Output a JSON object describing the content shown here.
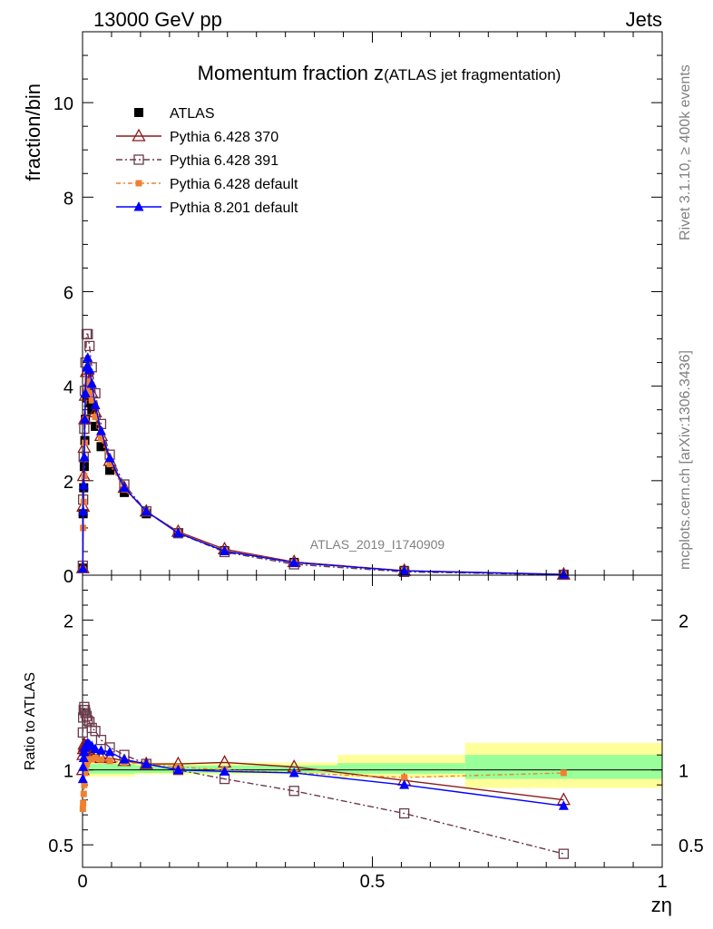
{
  "header": {
    "left_label": "13000 GeV pp",
    "right_label": "Jets"
  },
  "side_text": {
    "rivet": "Rivet 3.1.10, ≥ 400k events",
    "mcplots": "mcplots.cern.ch [arXiv:1306.3436]"
  },
  "chart_data": [
    {
      "type": "line",
      "title": "Momentum fraction z",
      "subtitle": "(ATLAS jet fragmentation)",
      "ylabel": "fraction/bin",
      "watermark": "ATLAS_2019_I1740909",
      "ylim": [
        0,
        11.5
      ],
      "xlim": [
        0,
        1
      ],
      "y_ticks": [
        "0",
        "2",
        "4",
        "6",
        "8",
        "10"
      ],
      "legend_position": "top-left",
      "series": [
        {
          "name": "ATLAS",
          "color": "#000000",
          "marker": "filled-square",
          "x": [
            0.0005,
            0.001,
            0.002,
            0.003,
            0.004,
            0.005,
            0.007,
            0.009,
            0.012,
            0.016,
            0.022,
            0.032,
            0.047,
            0.072,
            0.11,
            0.165,
            0.245,
            0.365,
            0.555,
            0.83
          ],
          "y": [
            0.15,
            1.3,
            1.85,
            2.3,
            2.85,
            3.3,
            3.75,
            3.85,
            3.65,
            3.5,
            3.15,
            2.72,
            2.22,
            1.75,
            1.3,
            0.88,
            0.52,
            0.27,
            0.1,
            0.02
          ]
        },
        {
          "name": "Pythia 6.428 370",
          "color": "#8b1a1a",
          "marker": "open-triangle",
          "x": [
            0.0005,
            0.001,
            0.002,
            0.003,
            0.004,
            0.005,
            0.007,
            0.009,
            0.012,
            0.016,
            0.022,
            0.032,
            0.047,
            0.072,
            0.11,
            0.165,
            0.245,
            0.365,
            0.555,
            0.83
          ],
          "y": [
            0.15,
            1.45,
            2.1,
            2.7,
            3.3,
            3.8,
            4.3,
            4.35,
            4.1,
            3.85,
            3.45,
            2.95,
            2.42,
            1.85,
            1.35,
            0.92,
            0.55,
            0.28,
            0.095,
            0.016
          ]
        },
        {
          "name": "Pythia 6.428 391",
          "color": "#6b3a4a",
          "marker": "open-square",
          "x": [
            0.0005,
            0.001,
            0.002,
            0.003,
            0.004,
            0.005,
            0.007,
            0.009,
            0.012,
            0.016,
            0.022,
            0.032,
            0.047,
            0.072,
            0.11,
            0.165,
            0.245,
            0.365,
            0.555,
            0.83
          ],
          "y": [
            0.2,
            1.6,
            2.5,
            3.1,
            3.9,
            4.5,
            5.1,
            5.1,
            4.85,
            4.4,
            3.85,
            3.2,
            2.55,
            1.92,
            1.35,
            0.89,
            0.49,
            0.23,
            0.07,
            0.009
          ]
        },
        {
          "name": "Pythia 6.428 default",
          "color": "#f08030",
          "marker": "filled-small-square",
          "x": [
            0.0005,
            0.001,
            0.002,
            0.003,
            0.004,
            0.005,
            0.007,
            0.009,
            0.012,
            0.016,
            0.022,
            0.032,
            0.047,
            0.072,
            0.11,
            0.165,
            0.245,
            0.365,
            0.555,
            0.83
          ],
          "y": [
            0.12,
            1.0,
            1.55,
            2.1,
            2.8,
            3.3,
            3.9,
            4.1,
            3.85,
            3.7,
            3.35,
            2.9,
            2.35,
            1.82,
            1.35,
            0.9,
            0.52,
            0.27,
            0.096,
            0.02
          ]
        },
        {
          "name": "Pythia 8.201 default",
          "color": "#0000ff",
          "marker": "filled-triangle",
          "x": [
            0.0005,
            0.001,
            0.002,
            0.003,
            0.004,
            0.005,
            0.007,
            0.009,
            0.012,
            0.016,
            0.022,
            0.032,
            0.047,
            0.072,
            0.11,
            0.165,
            0.245,
            0.365,
            0.555,
            0.83
          ],
          "y": [
            0.14,
            1.35,
            1.9,
            2.5,
            3.3,
            3.85,
            4.4,
            4.6,
            4.35,
            4.05,
            3.6,
            3.05,
            2.48,
            1.85,
            1.35,
            0.89,
            0.51,
            0.265,
            0.092,
            0.016
          ]
        }
      ]
    },
    {
      "type": "line",
      "ylabel": "Ratio to ATLAS",
      "xlabel": "zη",
      "ylim": [
        0.35,
        2.3
      ],
      "xlim": [
        0,
        1
      ],
      "y_ticks": [
        "0.5",
        "1",
        "2"
      ],
      "x_ticks": [
        "0",
        "0.5",
        "1"
      ],
      "reference": 1,
      "bands": [
        {
          "x0": 0.0,
          "x1": 0.09,
          "green": [
            0.975,
            1.04
          ],
          "yellow": [
            0.955,
            1.06
          ]
        },
        {
          "x0": 0.09,
          "x1": 0.44,
          "green": [
            0.98,
            1.03
          ],
          "yellow": [
            0.97,
            1.05
          ]
        },
        {
          "x0": 0.44,
          "x1": 0.66,
          "green": [
            0.975,
            1.045
          ],
          "yellow": [
            0.95,
            1.1
          ]
        },
        {
          "x0": 0.66,
          "x1": 1.0,
          "green": [
            0.94,
            1.1
          ],
          "yellow": [
            0.88,
            1.18
          ]
        }
      ],
      "series": [
        {
          "name": "Pythia 6.428 370",
          "color": "#8b1a1a",
          "marker": "open-triangle",
          "x": [
            0.0005,
            0.001,
            0.002,
            0.003,
            0.004,
            0.005,
            0.007,
            0.009,
            0.012,
            0.016,
            0.022,
            0.032,
            0.047,
            0.072,
            0.11,
            0.165,
            0.245,
            0.365,
            0.555,
            0.83
          ],
          "y": [
            1.0,
            1.1,
            1.14,
            1.17,
            1.16,
            1.15,
            1.15,
            1.13,
            1.12,
            1.1,
            1.1,
            1.08,
            1.08,
            1.06,
            1.04,
            1.04,
            1.05,
            1.02,
            0.93,
            0.8
          ]
        },
        {
          "name": "Pythia 6.428 391",
          "color": "#6b3a4a",
          "marker": "open-square",
          "x": [
            0.0005,
            0.001,
            0.002,
            0.003,
            0.004,
            0.005,
            0.007,
            0.009,
            0.012,
            0.016,
            0.022,
            0.032,
            0.047,
            0.072,
            0.11,
            0.165,
            0.245,
            0.365,
            0.555,
            0.83
          ],
          "y": [
            1.25,
            1.35,
            1.4,
            1.42,
            1.4,
            1.38,
            1.36,
            1.33,
            1.32,
            1.28,
            1.26,
            1.2,
            1.15,
            1.1,
            1.04,
            1.0,
            0.94,
            0.86,
            0.71,
            0.44
          ]
        },
        {
          "name": "Pythia 6.428 default",
          "color": "#f08030",
          "marker": "filled-small-square",
          "x": [
            0.0005,
            0.001,
            0.002,
            0.003,
            0.004,
            0.005,
            0.007,
            0.009,
            0.012,
            0.016,
            0.022,
            0.032,
            0.047,
            0.072,
            0.11,
            0.165,
            0.245,
            0.365,
            0.555,
            0.83
          ],
          "y": [
            0.74,
            0.78,
            0.84,
            0.9,
            0.98,
            1.0,
            1.04,
            1.06,
            1.07,
            1.07,
            1.08,
            1.07,
            1.06,
            1.05,
            1.04,
            1.02,
            1.0,
            0.98,
            0.95,
            0.98
          ]
        },
        {
          "name": "Pythia 8.201 default",
          "color": "#0000ff",
          "marker": "filled-triangle",
          "x": [
            0.0005,
            0.001,
            0.002,
            0.003,
            0.004,
            0.005,
            0.007,
            0.009,
            0.012,
            0.016,
            0.022,
            0.032,
            0.047,
            0.072,
            0.11,
            0.165,
            0.245,
            0.365,
            0.555,
            0.83
          ],
          "y": [
            0.94,
            1.02,
            1.08,
            1.12,
            1.15,
            1.16,
            1.17,
            1.18,
            1.17,
            1.16,
            1.14,
            1.13,
            1.12,
            1.07,
            1.04,
            1.0,
            0.99,
            0.98,
            0.9,
            0.76
          ]
        }
      ]
    }
  ]
}
